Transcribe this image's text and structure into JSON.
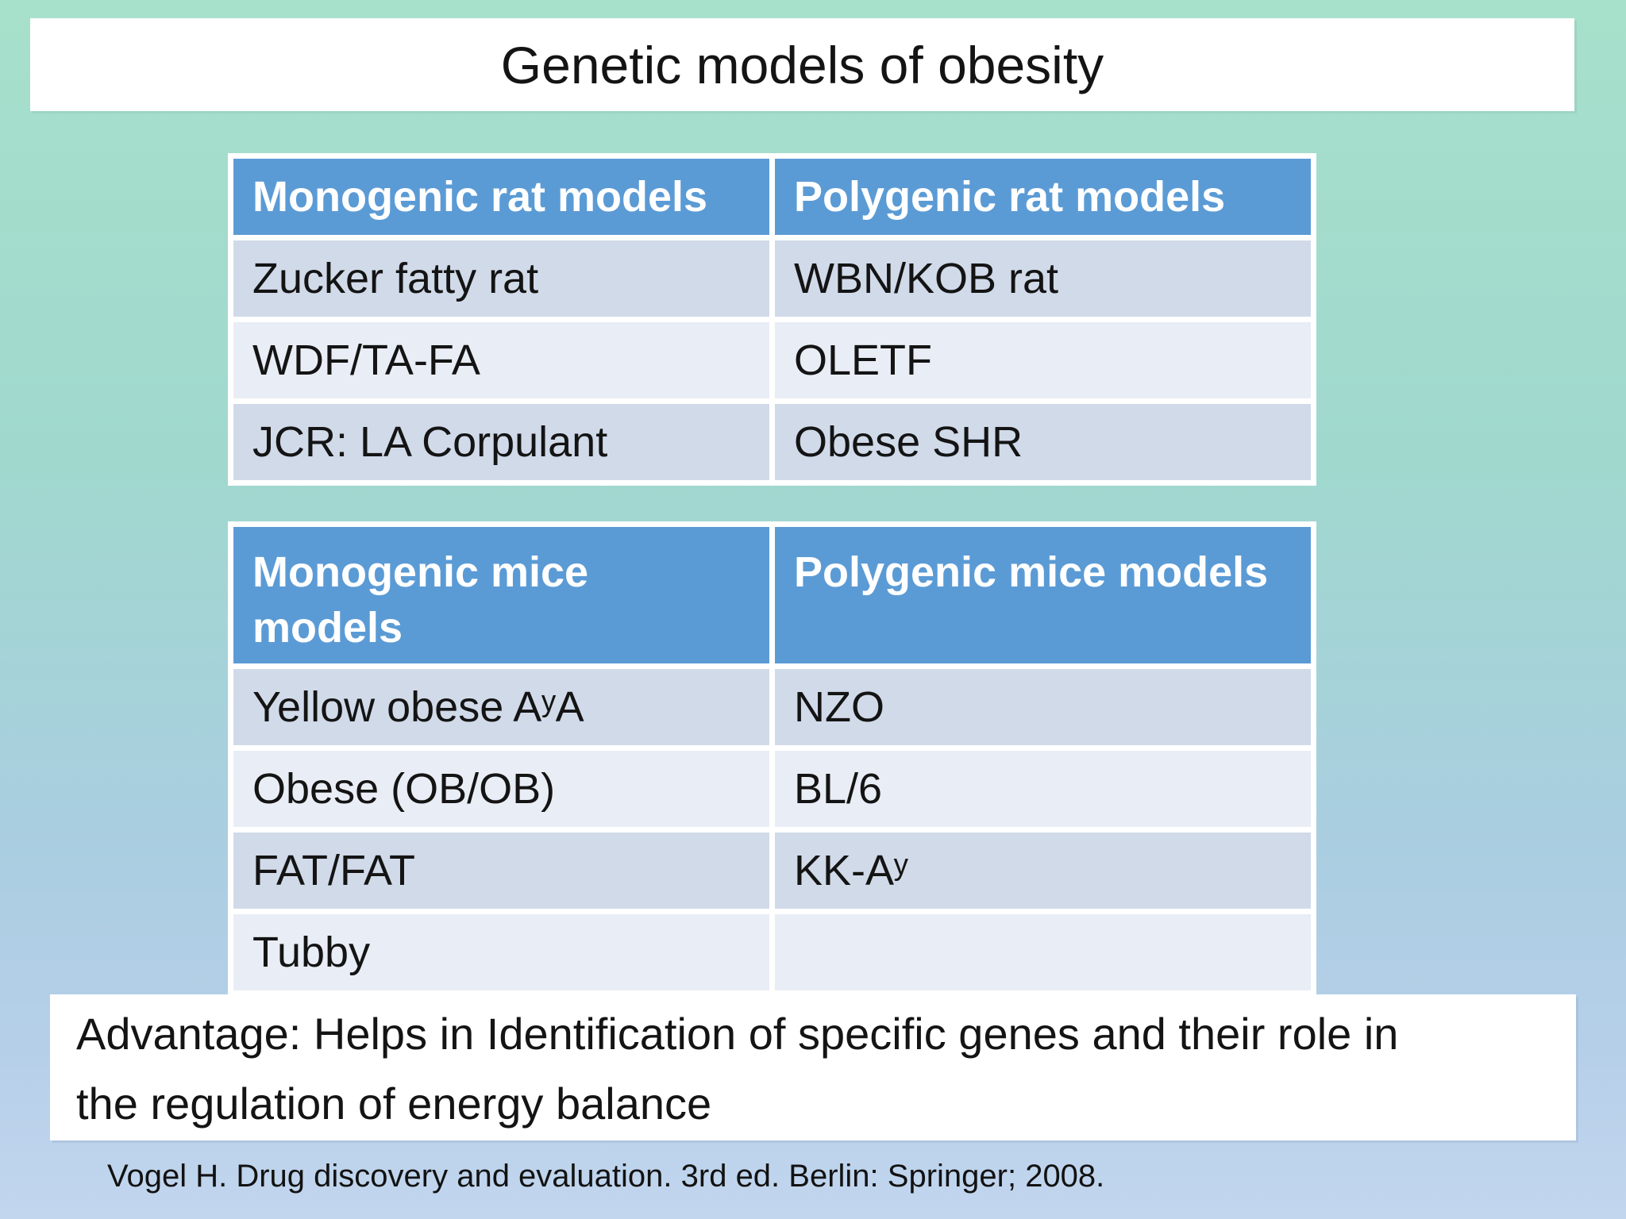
{
  "slide": {
    "title": "Genetic models of obesity",
    "advantage_line1": "Advantage: Helps in Identification of specific genes and their role in",
    "advantage_line2": "the regulation of energy balance",
    "citation": "Vogel H. Drug discovery and evaluation. 3rd ed. Berlin: Springer; 2008."
  },
  "rat_table": {
    "headers": [
      "Monogenic rat models",
      "Polygenic rat models"
    ],
    "rows": [
      [
        "Zucker fatty rat",
        "WBN/KOB rat"
      ],
      [
        "WDF/TA-FA",
        "OLETF"
      ],
      [
        "JCR: LA Corpulant",
        "Obese SHR"
      ]
    ]
  },
  "mice_table": {
    "headers": [
      "Monogenic mice models",
      "Polygenic mice models"
    ],
    "rows": [
      [
        "Yellow obese AʸA",
        "NZO"
      ],
      [
        "Obese (OB/OB)",
        "BL/6"
      ],
      [
        "FAT/FAT",
        "KK-Aʸ"
      ],
      [
        "Tubby",
        ""
      ]
    ]
  },
  "colors": {
    "header_blue": "#5B9BD5",
    "row_dark": "#D1DAE9",
    "row_light": "#E9EDF5",
    "background_top": "#A7E0CB",
    "background_bottom": "#C2D6EE",
    "panel_white": "#FFFFFF"
  }
}
